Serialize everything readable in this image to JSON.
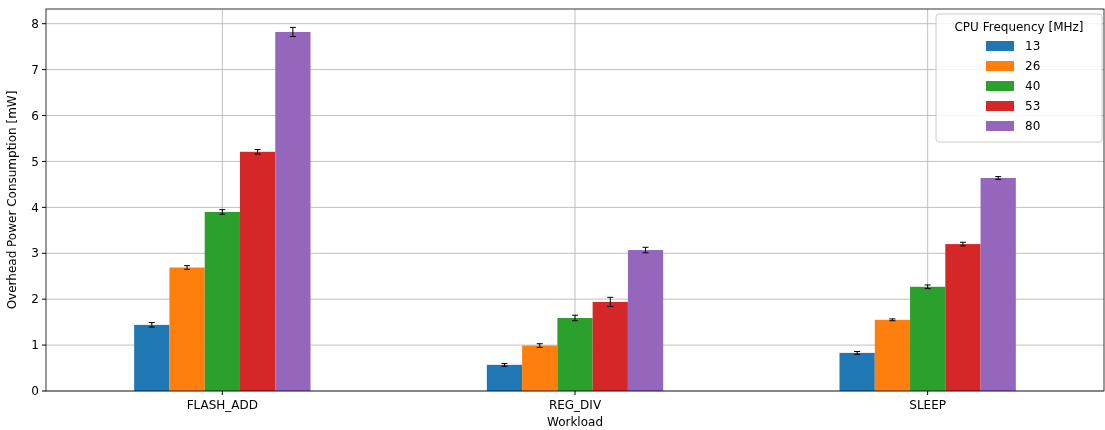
{
  "chart_data": {
    "type": "bar",
    "xlabel": "Workload",
    "ylabel": "Overhead Power Consumption [mW]",
    "legend_title": "CPU Frequency [MHz]",
    "categories": [
      "FLASH_ADD",
      "REG_DIV",
      "SLEEP"
    ],
    "series": [
      {
        "name": "13",
        "color": "#1f77b4",
        "values": [
          1.44,
          0.57,
          0.83
        ],
        "errors": [
          0.05,
          0.03,
          0.03
        ]
      },
      {
        "name": "26",
        "color": "#ff7f0e",
        "values": [
          2.69,
          0.99,
          1.55
        ],
        "errors": [
          0.04,
          0.04,
          0.02
        ]
      },
      {
        "name": "40",
        "color": "#2ca02c",
        "values": [
          3.9,
          1.59,
          2.27
        ],
        "errors": [
          0.05,
          0.06,
          0.04
        ]
      },
      {
        "name": "53",
        "color": "#d62728",
        "values": [
          5.21,
          1.94,
          3.2
        ],
        "errors": [
          0.05,
          0.1,
          0.04
        ]
      },
      {
        "name": "80",
        "color": "#9467bd",
        "values": [
          7.82,
          3.07,
          4.64
        ],
        "errors": [
          0.1,
          0.06,
          0.03
        ]
      }
    ],
    "ylim": [
      0,
      8.32
    ],
    "yticks": [
      0,
      1,
      2,
      3,
      4,
      5,
      6,
      7,
      8
    ],
    "grid": true,
    "legend": "top right"
  }
}
